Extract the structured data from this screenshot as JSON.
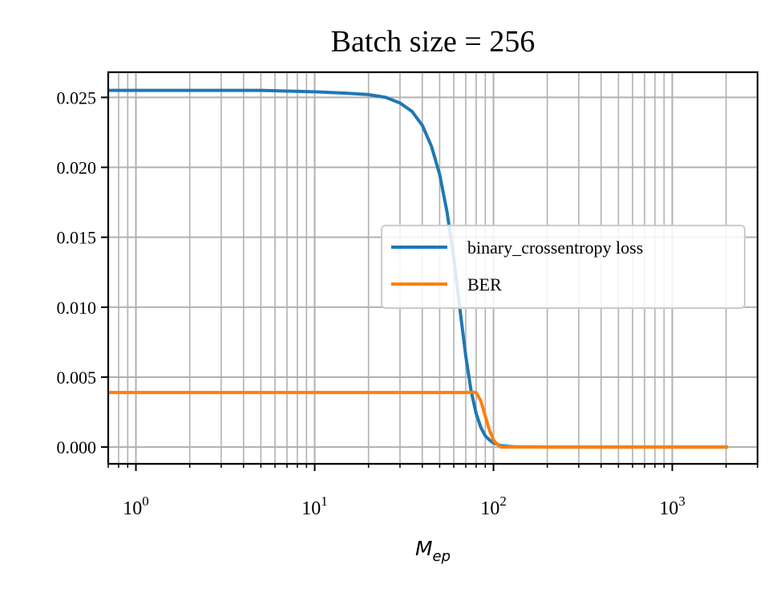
{
  "chart_data": {
    "type": "line",
    "title": "Batch size = 256",
    "xlabel_main": "M",
    "xlabel_sub": "ep",
    "ylabel": "",
    "xscale": "log",
    "xlim": [
      0.7,
      3000
    ],
    "ylim": [
      -0.0012,
      0.0268
    ],
    "grid": "on (major and minor)",
    "legend_position": "center-right",
    "x_major_ticks": [
      {
        "value": 1,
        "base": "10",
        "exp": "0"
      },
      {
        "value": 10,
        "base": "10",
        "exp": "1"
      },
      {
        "value": 100,
        "base": "10",
        "exp": "2"
      },
      {
        "value": 1000,
        "base": "10",
        "exp": "3"
      }
    ],
    "y_ticks": [
      {
        "value": 0.0,
        "label": "0.000"
      },
      {
        "value": 0.005,
        "label": "0.005"
      },
      {
        "value": 0.01,
        "label": "0.010"
      },
      {
        "value": 0.015,
        "label": "0.015"
      },
      {
        "value": 0.02,
        "label": "0.020"
      },
      {
        "value": 0.025,
        "label": "0.025"
      }
    ],
    "series": [
      {
        "name": "binary_crossentropy loss",
        "color": "#1f77b4",
        "x": [
          0.7,
          1,
          2,
          5,
          10,
          15,
          20,
          25,
          30,
          35,
          40,
          45,
          50,
          55,
          60,
          65,
          70,
          75,
          80,
          85,
          90,
          95,
          100,
          105,
          110,
          120,
          130,
          150,
          200,
          500,
          1000,
          2048
        ],
        "y": [
          0.0255,
          0.0255,
          0.0255,
          0.0255,
          0.0254,
          0.0253,
          0.0252,
          0.025,
          0.0246,
          0.024,
          0.023,
          0.0215,
          0.0195,
          0.0168,
          0.0135,
          0.0098,
          0.0065,
          0.004,
          0.0024,
          0.0014,
          0.0008,
          0.0005,
          0.0003,
          0.0002,
          0.0001,
          5e-05,
          2e-05,
          1e-05,
          0.0,
          0.0,
          0.0,
          0.0
        ]
      },
      {
        "name": "BER",
        "color": "#ff7f0e",
        "x": [
          0.7,
          1,
          10,
          50,
          70,
          80,
          85,
          90,
          95,
          100,
          105,
          110,
          150,
          500,
          2048
        ],
        "y": [
          0.0039,
          0.0039,
          0.0039,
          0.0039,
          0.0039,
          0.0039,
          0.0033,
          0.0022,
          0.0012,
          0.0005,
          0.0002,
          0.0,
          0.0,
          0.0,
          0.0
        ]
      }
    ]
  }
}
